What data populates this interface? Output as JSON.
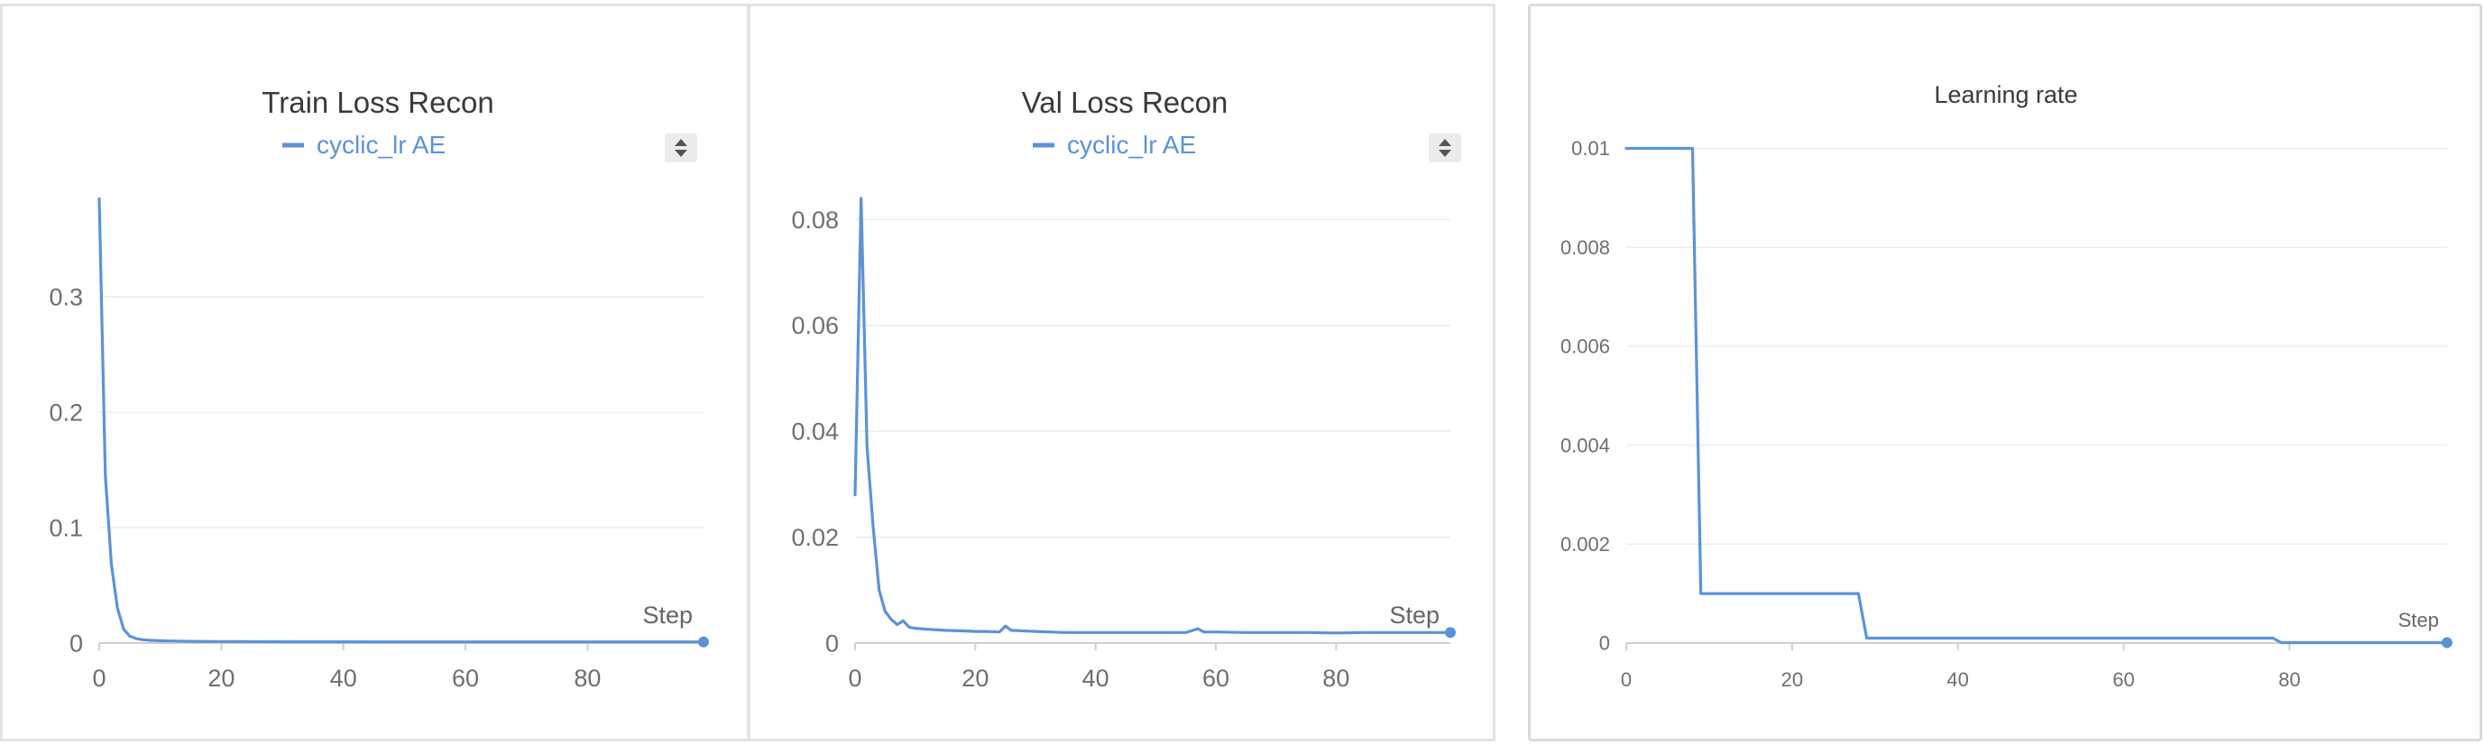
{
  "colors": {
    "line": "#5b93d6",
    "grid": "#ececec",
    "axis": "#cfcfcf"
  },
  "chart_data": [
    {
      "type": "line",
      "title": "Train Loss Recon",
      "legend": "cyclic_lr AE",
      "xlabel": "Step",
      "xlim": [
        0,
        99
      ],
      "ylim": [
        0,
        0.39
      ],
      "xticks": [
        0,
        20,
        40,
        60,
        80
      ],
      "yticks": [
        0,
        0.1,
        0.2,
        0.3
      ],
      "ytick_labels": [
        "0",
        "0.1",
        "0.2",
        "0.3"
      ],
      "grid": true,
      "legend_position": "top-center",
      "series": [
        {
          "name": "cyclic_lr AE",
          "x": [
            0,
            1,
            2,
            3,
            4,
            5,
            6,
            7,
            8,
            10,
            12,
            15,
            20,
            30,
            40,
            50,
            60,
            70,
            80,
            90,
            99
          ],
          "y": [
            0.385,
            0.145,
            0.068,
            0.03,
            0.012,
            0.006,
            0.004,
            0.003,
            0.0025,
            0.002,
            0.0018,
            0.0015,
            0.0013,
            0.0012,
            0.0011,
            0.001,
            0.001,
            0.001,
            0.001,
            0.001,
            0.001
          ]
        }
      ]
    },
    {
      "type": "line",
      "title": "Val Loss Recon",
      "legend": "cyclic_lr AE",
      "xlabel": "Step",
      "xlim": [
        0,
        99
      ],
      "ylim": [
        0,
        0.085
      ],
      "xticks": [
        0,
        20,
        40,
        60,
        80
      ],
      "yticks": [
        0,
        0.02,
        0.04,
        0.06,
        0.08
      ],
      "ytick_labels": [
        "0",
        "0.02",
        "0.04",
        "0.06",
        "0.08"
      ],
      "grid": true,
      "legend_position": "top-center",
      "series": [
        {
          "name": "cyclic_lr AE",
          "x": [
            0,
            1,
            2,
            3,
            4,
            5,
            6,
            7,
            8,
            9,
            10,
            12,
            15,
            18,
            20,
            22,
            24,
            25,
            26,
            30,
            35,
            40,
            45,
            50,
            55,
            57,
            58,
            60,
            65,
            70,
            75,
            80,
            85,
            90,
            95,
            99
          ],
          "y": [
            0.028,
            0.084,
            0.037,
            0.022,
            0.01,
            0.006,
            0.0045,
            0.0035,
            0.0042,
            0.003,
            0.0028,
            0.0026,
            0.0024,
            0.0023,
            0.0022,
            0.0022,
            0.0021,
            0.0032,
            0.0024,
            0.0022,
            0.002,
            0.002,
            0.002,
            0.002,
            0.002,
            0.0027,
            0.0021,
            0.0021,
            0.002,
            0.002,
            0.002,
            0.0019,
            0.002,
            0.002,
            0.002,
            0.002
          ]
        }
      ]
    },
    {
      "type": "line",
      "title": "Learning rate",
      "xlabel": "Step",
      "xlim": [
        0,
        99
      ],
      "ylim": [
        0,
        0.0101
      ],
      "xticks": [
        0,
        20,
        40,
        60,
        80
      ],
      "yticks": [
        0,
        0.002,
        0.004,
        0.006,
        0.008,
        0.01
      ],
      "ytick_labels": [
        "0",
        "0.002",
        "0.004",
        "0.006",
        "0.008",
        "0.01"
      ],
      "grid": true,
      "series": [
        {
          "x": [
            0,
            8,
            9,
            28,
            29,
            78,
            79,
            99
          ],
          "y": [
            0.01,
            0.01,
            0.001,
            0.001,
            0.0001,
            0.0001,
            1e-05,
            1e-05
          ]
        }
      ]
    }
  ]
}
